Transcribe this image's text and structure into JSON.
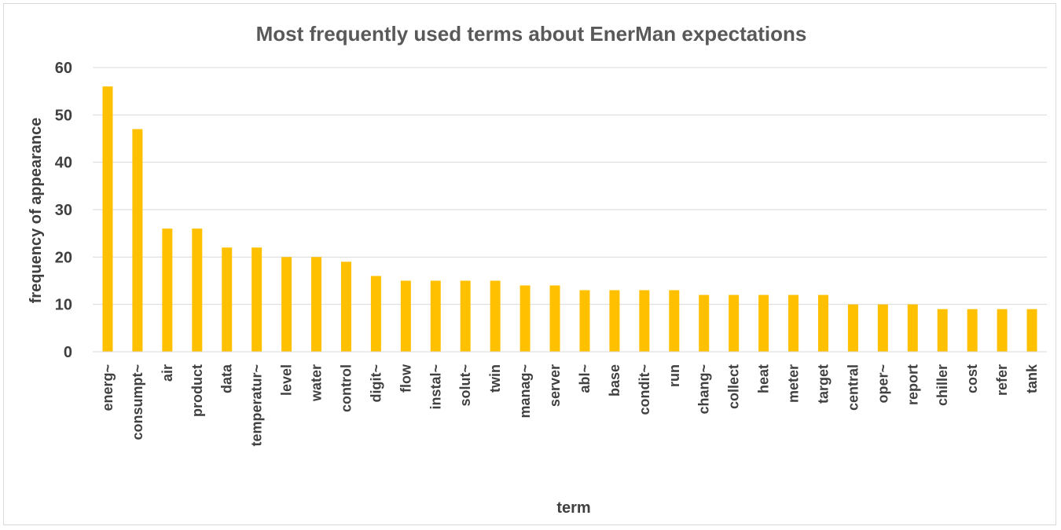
{
  "chart_data": {
    "type": "bar",
    "title": "Most frequently used terms about EnerMan expectations",
    "xlabel": "term",
    "ylabel": "frequency of appearance",
    "ylim": [
      0,
      60
    ],
    "yticks": [
      0,
      10,
      20,
      30,
      40,
      50,
      60
    ],
    "grid": true,
    "bar_color": "#FFC000",
    "categories": [
      "energ~",
      "consumpt~",
      "air",
      "product",
      "data",
      "temperatur~",
      "level",
      "water",
      "control",
      "digit~",
      "flow",
      "instal~",
      "solut~",
      "twin",
      "manag~",
      "server",
      "abl~",
      "base",
      "condit~",
      "run",
      "chang~",
      "collect",
      "heat",
      "meter",
      "target",
      "central",
      "oper~",
      "report",
      "chiller",
      "cost",
      "refer",
      "tank"
    ],
    "values": [
      56,
      47,
      26,
      26,
      22,
      22,
      20,
      20,
      19,
      16,
      15,
      15,
      15,
      15,
      14,
      14,
      13,
      13,
      13,
      13,
      12,
      12,
      12,
      12,
      12,
      10,
      10,
      10,
      9,
      9,
      9,
      9
    ]
  }
}
